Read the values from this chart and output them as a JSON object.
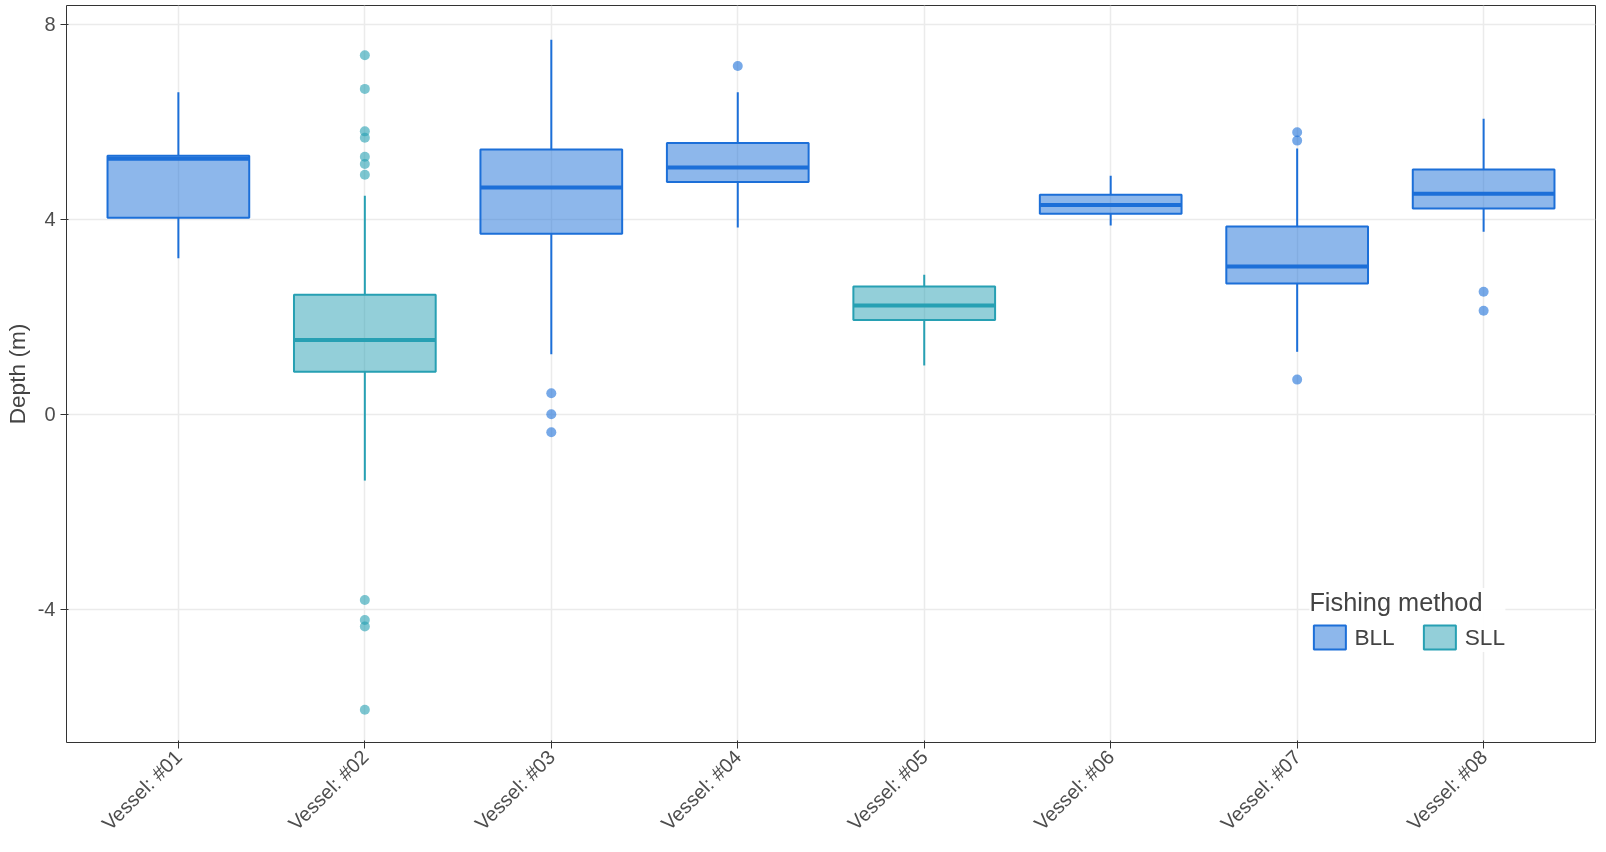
{
  "chart_data": {
    "type": "box",
    "ylabel": "Depth (m)",
    "legend_title": "Fishing method",
    "legend": "bottom right",
    "grid": true,
    "categories": [
      "Vessel: #01",
      "Vessel: #02",
      "Vessel: #03",
      "Vessel: #04",
      "Vessel: #05",
      "Vessel: #06",
      "Vessel: #07",
      "Vessel: #08"
    ],
    "ylim": [
      -6.73,
      8.38
    ],
    "yticks": [
      -4,
      0,
      4,
      8
    ],
    "series": [
      {
        "name": "BLL",
        "color": "#1c6fd8",
        "boxes": [
          {
            "low": 3.2,
            "q1": 4.03,
            "median": 5.24,
            "q3": 5.3,
            "high": 6.6
          },
          null,
          {
            "low": 1.23,
            "q1": 3.7,
            "median": 4.65,
            "q3": 5.43,
            "high": 7.68,
            "outliers": [
              0.43,
              0,
              -0.37
            ]
          },
          {
            "low": 3.83,
            "q1": 4.76,
            "median": 5.06,
            "q3": 5.56,
            "high": 6.6,
            "outliers": [
              7.14
            ]
          },
          null,
          {
            "low": 3.87,
            "q1": 4.11,
            "median": 4.29,
            "q3": 4.5,
            "high": 4.89
          },
          {
            "low": 1.28,
            "q1": 2.68,
            "median": 3.03,
            "q3": 3.85,
            "high": 5.45,
            "outliers": [
              5.78,
              5.61,
              0.71
            ]
          },
          {
            "low": 3.74,
            "q1": 4.22,
            "median": 4.52,
            "q3": 5.02,
            "high": 6.06,
            "outliers": [
              2.51,
              2.12
            ]
          }
        ]
      },
      {
        "name": "SLL",
        "color": "#27a0b3",
        "boxes": [
          null,
          {
            "low": -1.36,
            "q1": 0.87,
            "median": 1.52,
            "q3": 2.45,
            "high": 4.48,
            "outliers": [
              7.36,
              6.67,
              5.8,
              5.67,
              5.28,
              5.13,
              4.91,
              -3.81,
              -4.22,
              -4.35,
              -6.06
            ]
          },
          null,
          null,
          {
            "low": 1.0,
            "q1": 1.93,
            "median": 2.23,
            "q3": 2.62,
            "high": 2.86
          },
          null,
          null,
          null
        ]
      }
    ]
  }
}
